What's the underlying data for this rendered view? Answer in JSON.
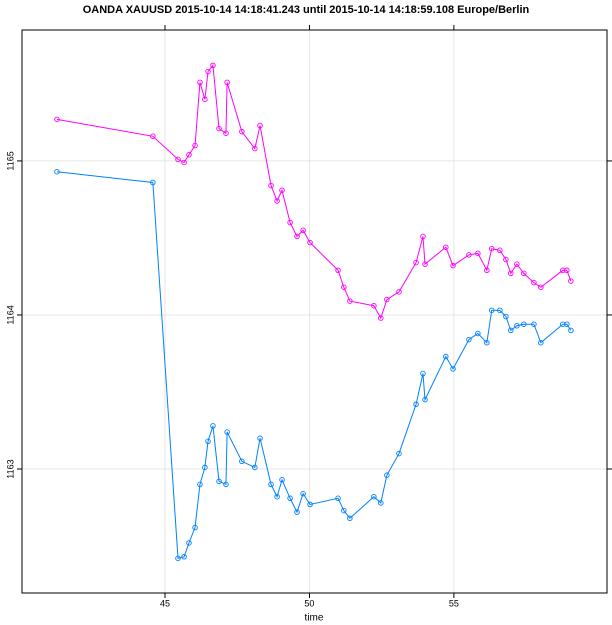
{
  "chart_data": {
    "type": "line",
    "title": "OANDA XAUUSD  2015-10-14 14:18:41.243 until 2015-10-14 14:18:59.108 Europe/Berlin",
    "x_label": "time",
    "x": [
      41.26,
      44.58,
      45.45,
      45.66,
      45.83,
      46.04,
      46.21,
      46.38,
      46.49,
      46.66,
      46.87,
      47.11,
      47.15,
      47.66,
      48.11,
      48.29,
      48.67,
      48.88,
      49.05,
      49.33,
      49.57,
      49.78,
      50.02,
      50.99,
      51.19,
      51.4,
      52.23,
      52.47,
      52.68,
      53.1,
      53.69,
      53.93,
      54.0,
      54.72,
      54.97,
      55.52,
      55.83,
      56.14,
      56.31,
      56.59,
      56.8,
      56.97,
      57.18,
      57.42,
      57.77,
      58.01,
      58.77,
      58.91,
      59.05
    ],
    "series": [
      {
        "color": "#ff00ff",
        "values": [
          1165.27,
          1165.16,
          1165.01,
          1164.99,
          1165.04,
          1165.1,
          1165.51,
          1165.4,
          1165.58,
          1165.62,
          1165.21,
          1165.18,
          1165.51,
          1165.19,
          1165.08,
          1165.23,
          1164.84,
          1164.74,
          1164.81,
          1164.6,
          1164.51,
          1164.55,
          1164.47,
          1164.29,
          1164.18,
          1164.09,
          1164.06,
          1163.98,
          1164.1,
          1164.15,
          1164.34,
          1164.51,
          1164.33,
          1164.44,
          1164.32,
          1164.39,
          1164.4,
          1164.29,
          1164.43,
          1164.42,
          1164.36,
          1164.27,
          1164.33,
          1164.27,
          1164.21,
          1164.18,
          1164.29,
          1164.29,
          1164.22
        ]
      },
      {
        "color": "#0080ff",
        "values": [
          1164.93,
          1164.86,
          1162.42,
          1162.43,
          1162.52,
          1162.62,
          1162.9,
          1163.01,
          1163.18,
          1163.28,
          1162.92,
          1162.9,
          1163.24,
          1163.05,
          1163.01,
          1163.2,
          1162.9,
          1162.82,
          1162.93,
          1162.81,
          1162.72,
          1162.84,
          1162.77,
          1162.81,
          1162.73,
          1162.68,
          1162.82,
          1162.78,
          1162.96,
          1163.1,
          1163.42,
          1163.62,
          1163.45,
          1163.73,
          1163.65,
          1163.84,
          1163.88,
          1163.82,
          1164.03,
          1164.03,
          1163.99,
          1163.9,
          1163.93,
          1163.94,
          1163.94,
          1163.82,
          1163.94,
          1163.94,
          1163.9
        ]
      }
    ],
    "xlim": [
      40.05,
      60.3
    ],
    "xticks": [
      45,
      50,
      55
    ],
    "ylim": [
      1162.195,
      1165.85
    ],
    "yticks": [
      1163,
      1164,
      1165
    ],
    "grid": true
  }
}
